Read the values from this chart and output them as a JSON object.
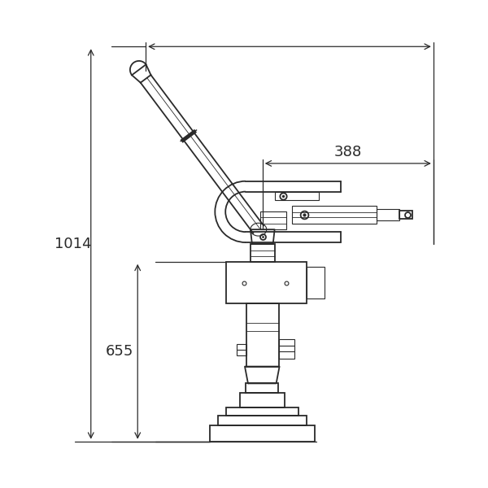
{
  "bg_color": "#ffffff",
  "line_color": "#2a2a2a",
  "dim_color": "#2a2a2a",
  "lw_main": 1.3,
  "lw_dim": 0.9,
  "lw_detail": 0.8,
  "lw_thin": 0.6,
  "dim_388": "388",
  "dim_1014": "1014",
  "dim_655": "655",
  "font_size_dim": 13
}
